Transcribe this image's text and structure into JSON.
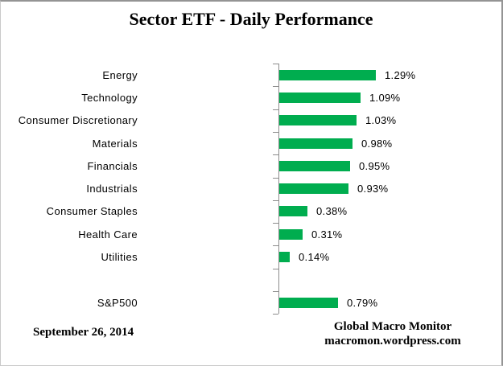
{
  "chart_data": {
    "type": "bar",
    "orientation": "horizontal",
    "title": "Sector ETF - Daily Performance",
    "value_unit": "%",
    "grid": false,
    "legend": false,
    "bar_color": "#00AD4F",
    "axis_color": "#8C8C8C",
    "categories": [
      "Energy",
      "Technology",
      "Consumer Discretionary",
      "Materials",
      "Financials",
      "Industrials",
      "Consumer Staples",
      "Health Care",
      "Utilities",
      "S&P500"
    ],
    "values": [
      1.29,
      1.09,
      1.03,
      0.98,
      0.95,
      0.93,
      0.38,
      0.31,
      0.14,
      0.79
    ],
    "rows": [
      {
        "category": "Energy",
        "value": 1.29,
        "label": "1.29%"
      },
      {
        "category": "Technology",
        "value": 1.09,
        "label": "1.09%"
      },
      {
        "category": "Consumer Discretionary",
        "value": 1.03,
        "label": "1.03%"
      },
      {
        "category": "Materials",
        "value": 0.98,
        "label": "0.98%"
      },
      {
        "category": "Financials",
        "value": 0.95,
        "label": "0.95%"
      },
      {
        "category": "Industrials",
        "value": 0.93,
        "label": "0.93%"
      },
      {
        "category": "Consumer Staples",
        "value": 0.38,
        "label": "0.38%"
      },
      {
        "category": "Health Care",
        "value": 0.31,
        "label": "0.31%"
      },
      {
        "category": "Utilities",
        "value": 0.14,
        "label": "0.14%"
      },
      {
        "category": "",
        "value": null,
        "label": ""
      },
      {
        "category": "S&P500",
        "value": 0.79,
        "label": "0.79%"
      }
    ]
  },
  "footer": {
    "date": "September 26, 2014",
    "source_line1": "Global Macro Monitor",
    "source_line2": "macromon.wordpress.com"
  }
}
